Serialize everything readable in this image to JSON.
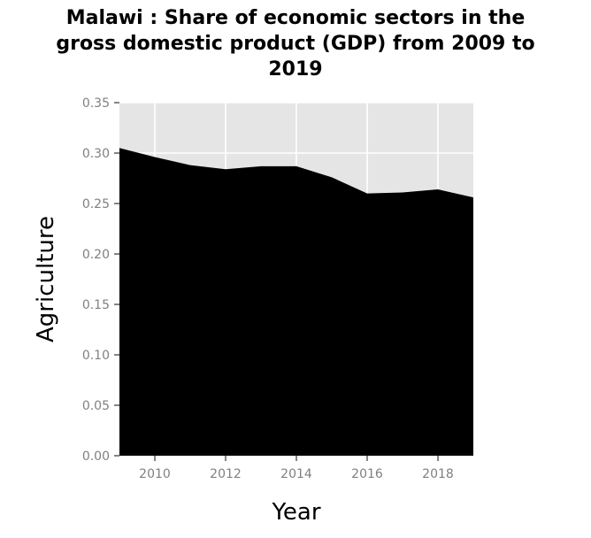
{
  "chart_data": {
    "type": "area",
    "title_lines": [
      "Malawi : Share of economic sectors in the",
      "gross domestic product (GDP) from 2009 to",
      "2019"
    ],
    "xlabel": "Year",
    "ylabel": "Agriculture",
    "x": [
      2009,
      2010,
      2011,
      2012,
      2013,
      2014,
      2015,
      2016,
      2017,
      2018,
      2019
    ],
    "series": [
      {
        "values": [
          0.305,
          0.296,
          0.288,
          0.284,
          0.287,
          0.287,
          0.276,
          0.26,
          0.261,
          0.264,
          0.256
        ]
      }
    ],
    "xlim": [
      2009,
      2019
    ],
    "ylim": [
      0,
      0.35
    ],
    "xticks": [
      "2010",
      "2012",
      "2014",
      "2016",
      "2018"
    ],
    "yticks": [
      "0.00",
      "0.05",
      "0.10",
      "0.15",
      "0.20",
      "0.25",
      "0.30",
      "0.35"
    ],
    "grid": true,
    "colors": {
      "fill": "#000000",
      "panel": "#e5e5e5",
      "grid": "#ffffff",
      "tick_text": "#808080"
    }
  }
}
